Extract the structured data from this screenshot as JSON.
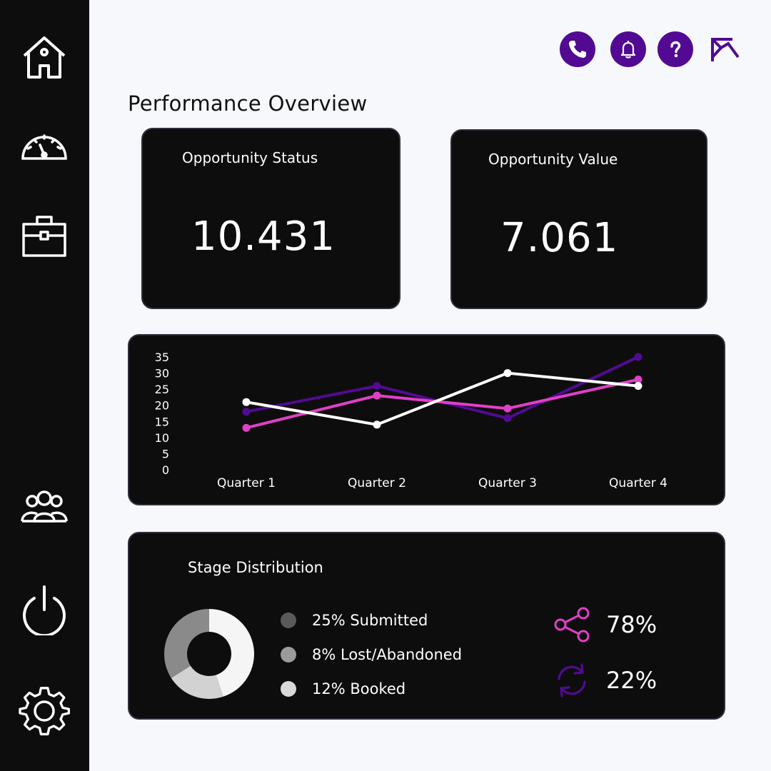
{
  "page": {
    "title": "Performance Overview"
  },
  "sidebar": {
    "items": [
      {
        "name": "home",
        "icon": "home-icon"
      },
      {
        "name": "dashboard",
        "icon": "speedometer-icon"
      },
      {
        "name": "portfolio",
        "icon": "briefcase-icon"
      },
      {
        "name": "team",
        "icon": "users-icon"
      },
      {
        "name": "power",
        "icon": "power-icon"
      },
      {
        "name": "settings",
        "icon": "gear-icon"
      }
    ]
  },
  "topbar": {
    "icons": [
      "phone-icon",
      "bell-icon",
      "help-icon",
      "logo-icon"
    ],
    "accent_color": "#520a93"
  },
  "kpis": [
    {
      "title": "Opportunity Status",
      "value": "10.431"
    },
    {
      "title": "Opportunity Value",
      "value": "7.061"
    }
  ],
  "chart_data": {
    "type": "line",
    "categories": [
      "Quarter 1",
      "Quarter 2",
      "Quarter 3",
      "Quarter 4"
    ],
    "yticks": [
      "35",
      "30",
      "25",
      "20",
      "15",
      "10",
      "5",
      "0"
    ],
    "ylim": [
      0,
      35
    ],
    "series": [
      {
        "values": [
          18,
          26,
          16,
          35
        ],
        "color": "#520a93"
      },
      {
        "values": [
          13,
          23,
          19,
          28
        ],
        "color": "#e040c8"
      },
      {
        "values": [
          21,
          14,
          30,
          26
        ],
        "color": "#ffffff"
      }
    ]
  },
  "stages": {
    "title": "Stage Distribution",
    "legend": [
      {
        "label": "25% Submitted",
        "color": "#5a5a5a"
      },
      {
        "label": "8% Lost/Abandoned",
        "color": "#9b9b9b"
      },
      {
        "label": "12% Booked",
        "color": "#d9d9d9"
      }
    ],
    "donut": {
      "segments": [
        {
          "color": "#f5f5f5",
          "percent": 45
        },
        {
          "color": "#d2d2d2",
          "percent": 21
        },
        {
          "color": "#8a8a8a",
          "percent": 34
        }
      ]
    },
    "stats": [
      {
        "icon": "share-icon",
        "value": "78%",
        "color": "#e040c8"
      },
      {
        "icon": "refresh-icon",
        "value": "22%",
        "color": "#520a93"
      }
    ]
  }
}
